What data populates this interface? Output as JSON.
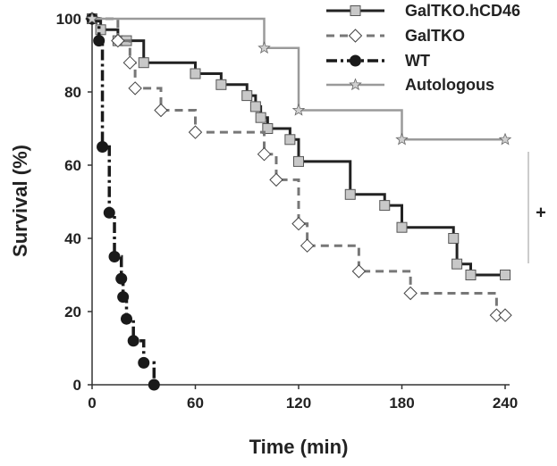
{
  "chart_data": {
    "type": "line",
    "title": "",
    "xlabel": "Time (min)",
    "ylabel": "Survival (%)",
    "xlim": [
      0,
      240
    ],
    "ylim": [
      0,
      100
    ],
    "x_ticks": [
      "0",
      "60",
      "120",
      "180",
      "240"
    ],
    "y_ticks": [
      "0",
      "20",
      "40",
      "60",
      "80",
      "100"
    ],
    "grid": false,
    "legend_position": "top-right",
    "series": [
      {
        "name": "GalTKO.hCD46",
        "color": "#222222",
        "dash": "solid",
        "marker": "square",
        "x": [
          0,
          5,
          15,
          20,
          30,
          60,
          75,
          90,
          95,
          98,
          102,
          115,
          120,
          150,
          170,
          180,
          210,
          212,
          220,
          240
        ],
        "y": [
          100,
          97,
          94,
          94,
          88,
          85,
          82,
          79,
          76,
          73,
          70,
          67,
          61,
          52,
          49,
          43,
          40,
          33,
          30,
          30
        ]
      },
      {
        "name": "GalTKO",
        "color": "#777777",
        "dash": "dash",
        "marker": "diamond",
        "x": [
          0,
          15,
          22,
          25,
          40,
          60,
          100,
          107,
          120,
          125,
          155,
          185,
          235,
          240
        ],
        "y": [
          100,
          94,
          88,
          81,
          75,
          69,
          63,
          56,
          44,
          38,
          31,
          25,
          19,
          19
        ]
      },
      {
        "name": "WT",
        "color": "#1a1a1a",
        "dash": "dashdot",
        "marker": "circle",
        "x": [
          0,
          4,
          6,
          10,
          13,
          17,
          18,
          20,
          24,
          30,
          36
        ],
        "y": [
          100,
          94,
          65,
          47,
          35,
          29,
          24,
          18,
          12,
          6,
          0
        ]
      },
      {
        "name": "Autologous",
        "color": "#9a9a9a",
        "dash": "solid",
        "marker": "star",
        "x": [
          0,
          100,
          120,
          180,
          240
        ],
        "y": [
          100,
          92,
          75,
          67,
          67
        ]
      }
    ],
    "annotations": [
      {
        "text": "+",
        "x_position": "right of curves",
        "y": 47
      }
    ]
  }
}
